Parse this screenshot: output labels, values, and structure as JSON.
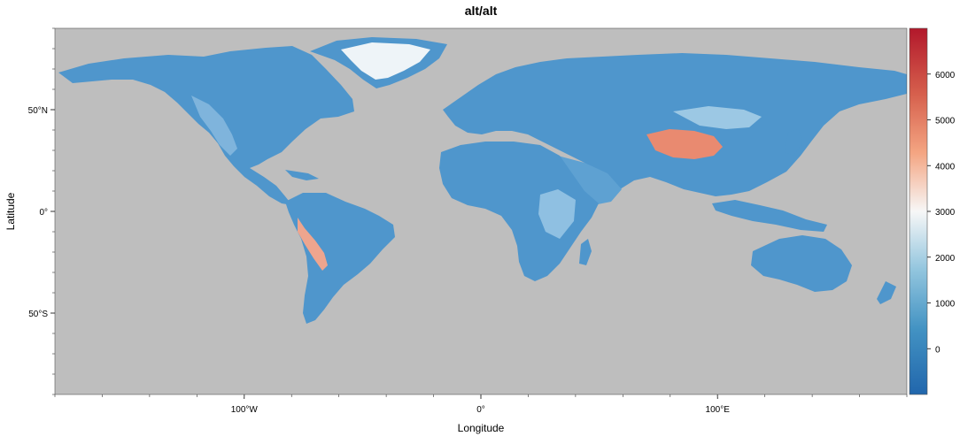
{
  "title": "alt/alt",
  "axes": {
    "x_label": "Longitude",
    "y_label": "Latitude",
    "x_ticks": [
      {
        "value": -100,
        "label": "100°W"
      },
      {
        "value": 0,
        "label": "0°"
      },
      {
        "value": 100,
        "label": "100°E"
      }
    ],
    "y_ticks": [
      {
        "value": 50,
        "label": "50°N"
      },
      {
        "value": 0,
        "label": "0°"
      },
      {
        "value": -50,
        "label": "50°S"
      }
    ],
    "x_range": [
      -180,
      180
    ],
    "y_range": [
      -90,
      90
    ]
  },
  "colorbar": {
    "range": [
      -1000,
      7000
    ],
    "ticks": [
      0,
      1000,
      2000,
      3000,
      4000,
      5000,
      6000
    ],
    "tick_labels": [
      "0",
      "1000",
      "2000",
      "3000",
      "4000",
      "5000",
      "6000"
    ],
    "colors": [
      "#2166ac",
      "#4393c3",
      "#92c5de",
      "#f7f7f7",
      "#f4a582",
      "#d6604d",
      "#b2182b"
    ]
  },
  "colors": {
    "background_missing": "#bebebe",
    "land_base": "#4f96cc"
  }
}
